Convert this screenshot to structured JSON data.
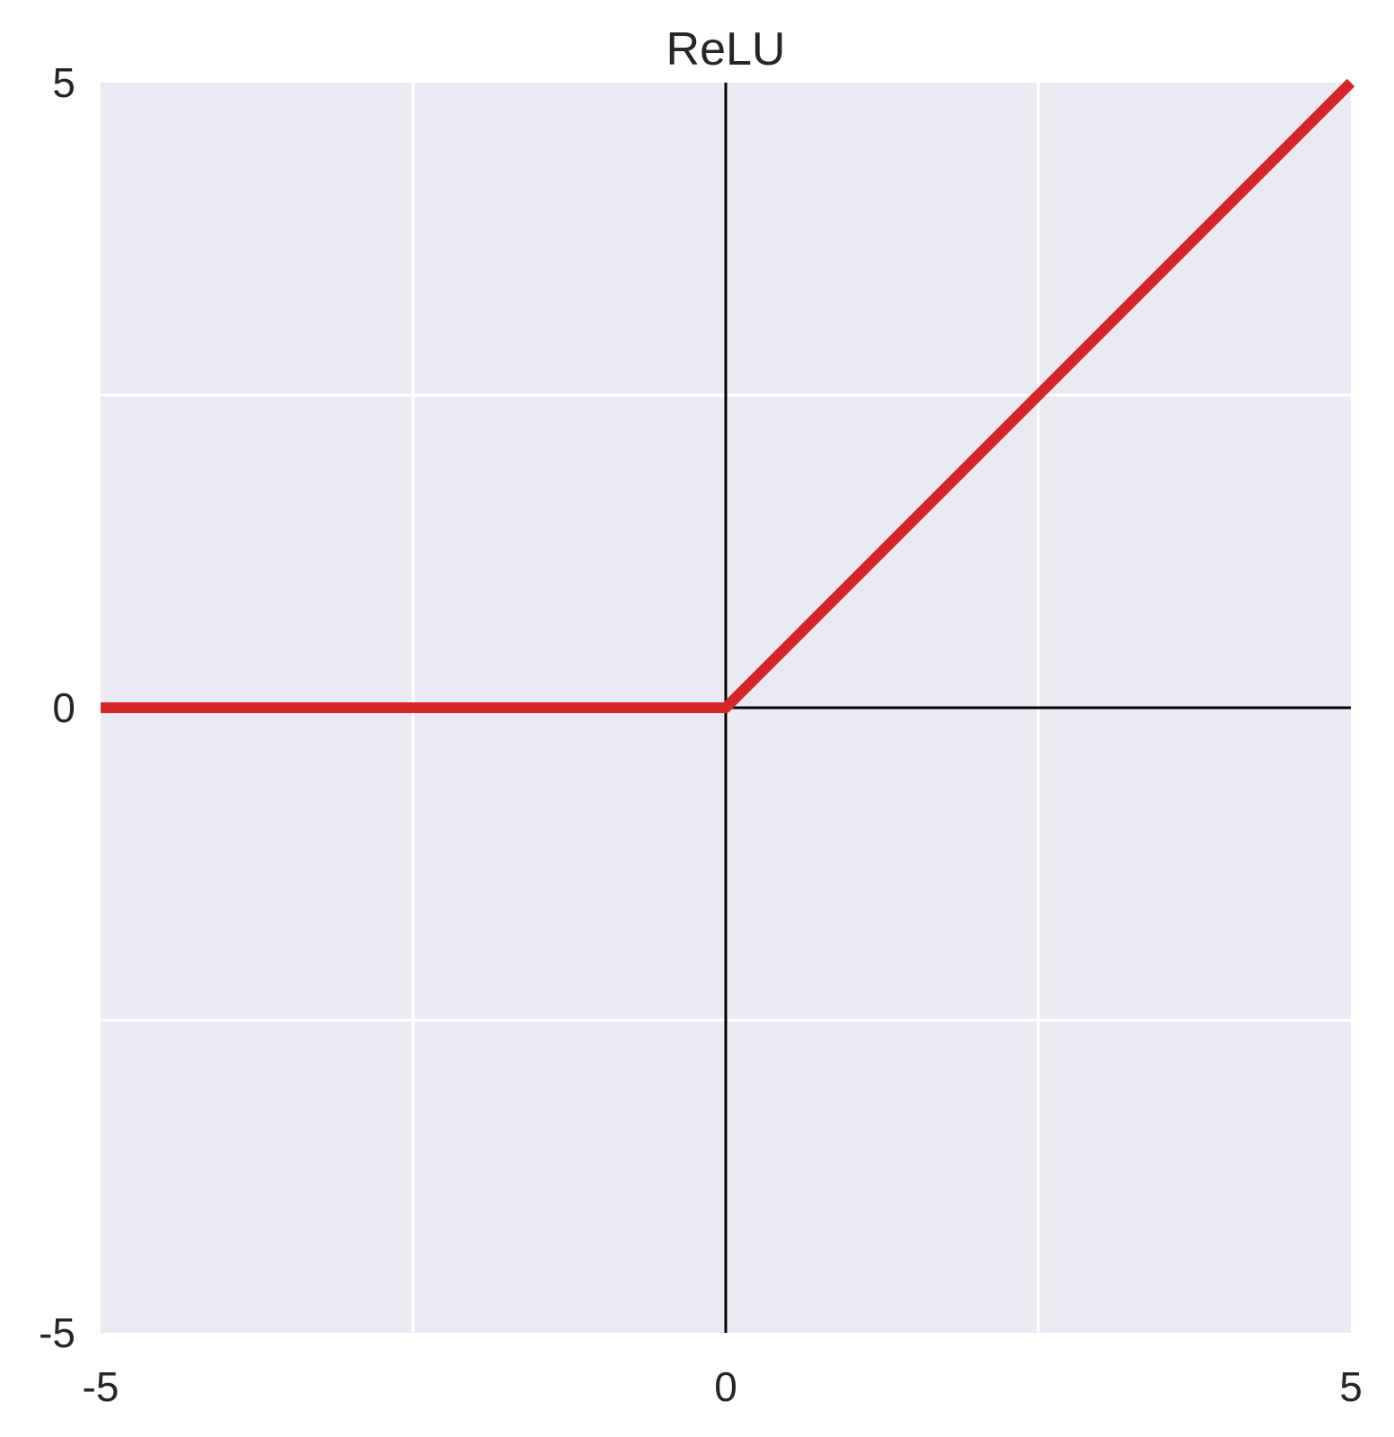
{
  "chart_data": {
    "type": "line",
    "title": "ReLU",
    "xlabel": "",
    "ylabel": "",
    "xlim": [
      -5,
      5
    ],
    "ylim": [
      -5,
      5
    ],
    "x_ticks": [
      -5,
      0,
      5
    ],
    "y_ticks": [
      -5,
      0,
      5
    ],
    "x_tick_labels": [
      "-5",
      "0",
      "5"
    ],
    "y_tick_labels": [
      "-5",
      "0",
      "5"
    ],
    "x_grid": [
      -2.5,
      2.5
    ],
    "y_grid": [
      -2.5,
      2.5
    ],
    "grid": true,
    "zero_axes": true,
    "legend": "none",
    "series": [
      {
        "x": [
          -5,
          0,
          5
        ],
        "y": [
          0,
          0,
          5
        ],
        "color": "#d62728"
      }
    ],
    "colors": {
      "plot_background": "#eaeaf2",
      "grid": "#ffffff",
      "zero_axis": "#000000",
      "text": "#262626"
    }
  }
}
